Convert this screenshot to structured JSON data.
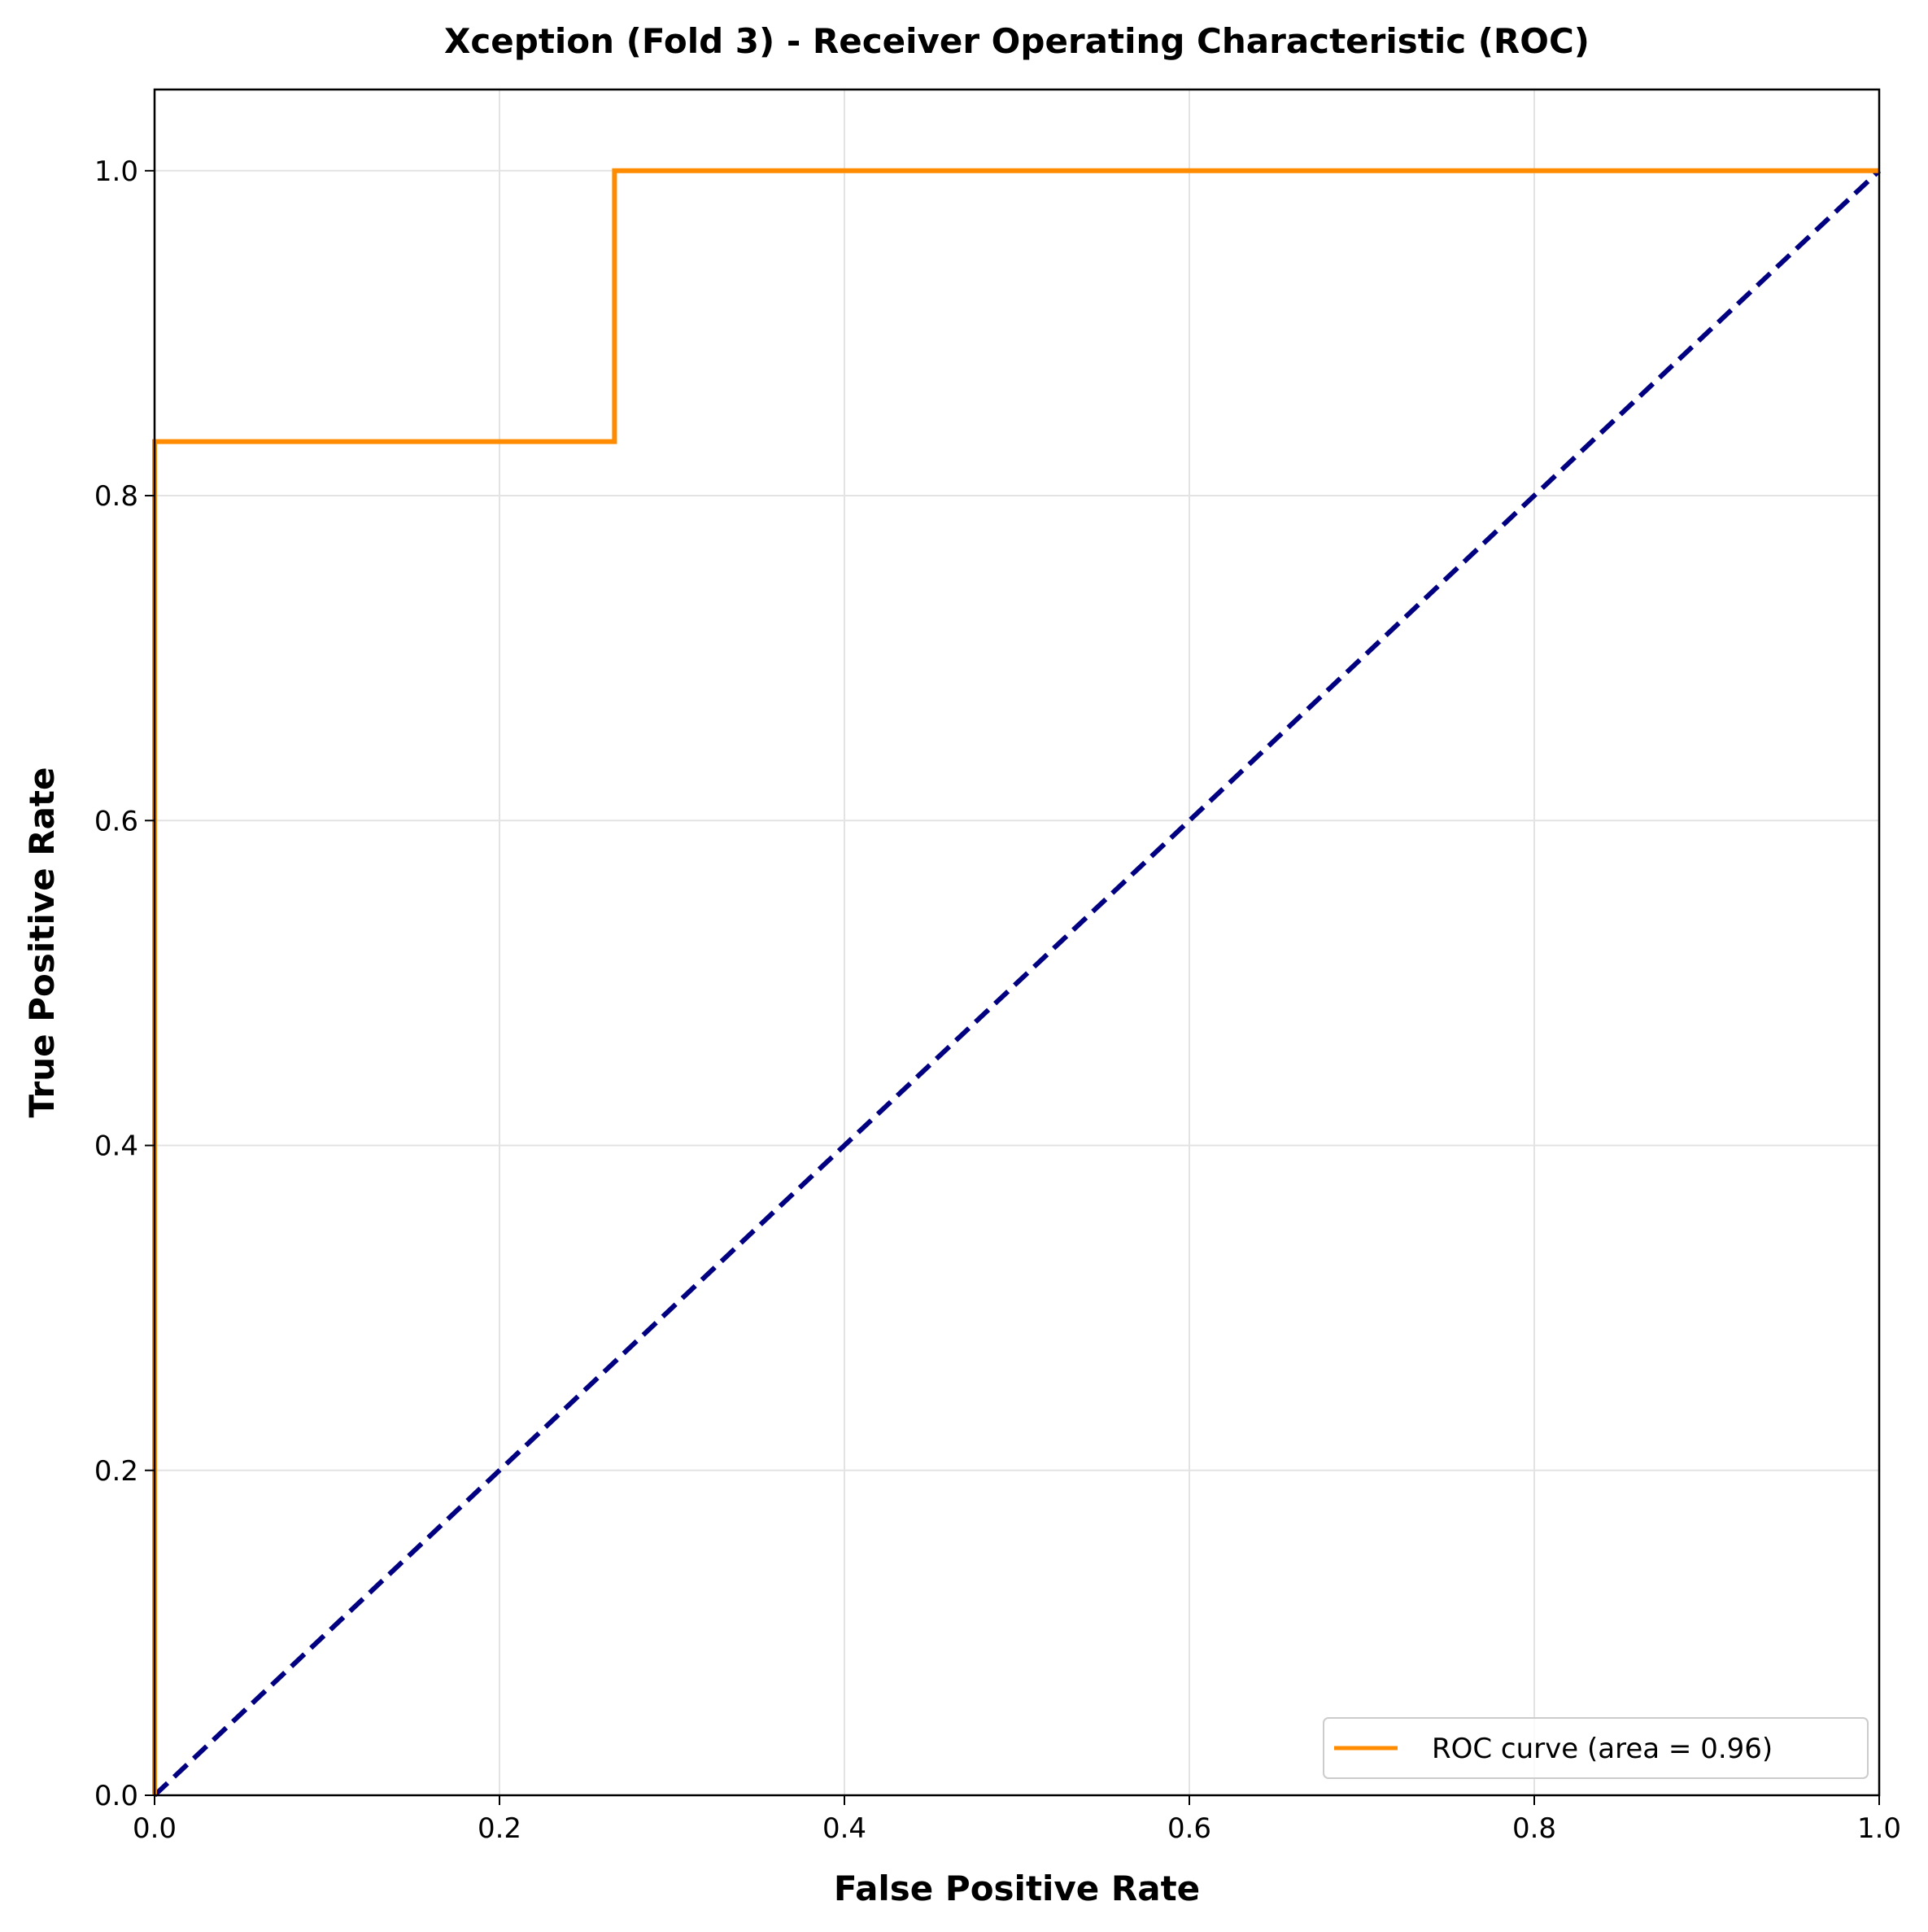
{
  "chart_data": {
    "type": "line",
    "title": "Xception (Fold 3) - Receiver Operating Characteristic (ROC)",
    "xlabel": "False Positive Rate",
    "ylabel": "True Positive Rate",
    "xlim": [
      0.0,
      1.0
    ],
    "ylim": [
      0.0,
      1.05
    ],
    "xticks": [
      "0.0",
      "0.2",
      "0.4",
      "0.6",
      "0.8",
      "1.0"
    ],
    "yticks": [
      "0.0",
      "0.2",
      "0.4",
      "0.6",
      "0.8",
      "1.0"
    ],
    "grid": true,
    "legend_position": "lower-right",
    "series": [
      {
        "name": "ROC curve (area = 0.96)",
        "color": "#ff8c00",
        "style": "solid",
        "x": [
          0.0,
          0.0,
          0.0,
          0.2667,
          0.2667,
          1.0
        ],
        "y": [
          0.0,
          0.8333,
          0.8333,
          0.8333,
          1.0,
          1.0
        ]
      },
      {
        "color": "#000080",
        "style": "dashed",
        "x": [
          0.0,
          1.0
        ],
        "y": [
          0.0,
          1.0
        ]
      }
    ]
  }
}
